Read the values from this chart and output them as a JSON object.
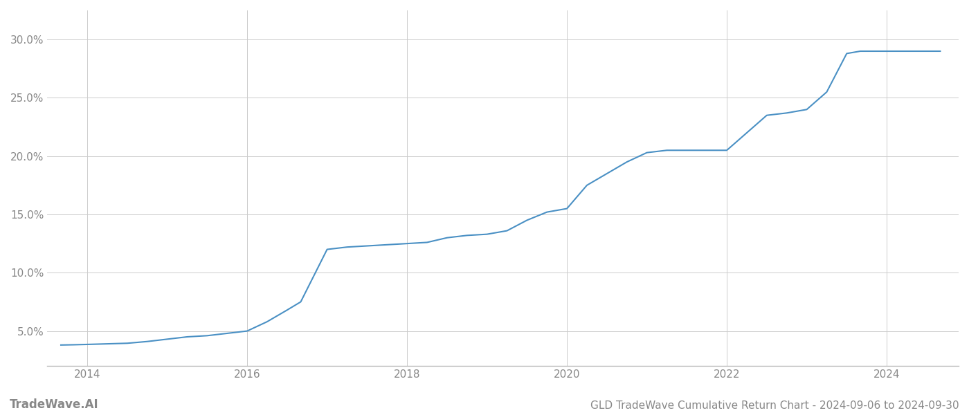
{
  "title": "GLD TradeWave Cumulative Return Chart - 2024-09-06 to 2024-09-30",
  "watermark": "TradeWave.AI",
  "line_color": "#4a90c4",
  "background_color": "#ffffff",
  "grid_color": "#cccccc",
  "x_values": [
    2013.67,
    2013.83,
    2014.0,
    2014.25,
    2014.5,
    2014.75,
    2015.0,
    2015.25,
    2015.5,
    2015.75,
    2016.0,
    2016.25,
    2016.5,
    2016.67,
    2017.0,
    2017.25,
    2017.5,
    2017.75,
    2018.0,
    2018.25,
    2018.5,
    2018.75,
    2019.0,
    2019.25,
    2019.5,
    2019.75,
    2020.0,
    2020.25,
    2020.5,
    2020.75,
    2021.0,
    2021.25,
    2021.5,
    2021.75,
    2022.0,
    2022.25,
    2022.5,
    2022.75,
    2023.0,
    2023.25,
    2023.5,
    2023.67,
    2024.0,
    2024.25,
    2024.67
  ],
  "y_values": [
    3.8,
    3.82,
    3.85,
    3.9,
    3.95,
    4.1,
    4.3,
    4.5,
    4.6,
    4.8,
    5.0,
    5.8,
    6.8,
    7.5,
    12.0,
    12.2,
    12.3,
    12.4,
    12.5,
    12.6,
    13.0,
    13.2,
    13.3,
    13.6,
    14.5,
    15.2,
    15.5,
    17.5,
    18.5,
    19.5,
    20.3,
    20.5,
    20.5,
    20.5,
    20.5,
    22.0,
    23.5,
    23.7,
    24.0,
    25.5,
    28.8,
    29.0,
    29.0,
    29.0,
    29.0
  ],
  "ylim": [
    2.0,
    32.5
  ],
  "xlim": [
    2013.5,
    2024.9
  ],
  "yticks": [
    5.0,
    10.0,
    15.0,
    20.0,
    25.0,
    30.0
  ],
  "ytick_labels": [
    "5.0%",
    "10.0%",
    "15.0%",
    "20.0%",
    "25.0%",
    "30.0%"
  ],
  "xticks": [
    2014,
    2016,
    2018,
    2020,
    2022,
    2024
  ],
  "tick_color": "#888888",
  "title_fontsize": 11,
  "watermark_fontsize": 12,
  "tick_fontsize": 11,
  "line_width": 1.5
}
